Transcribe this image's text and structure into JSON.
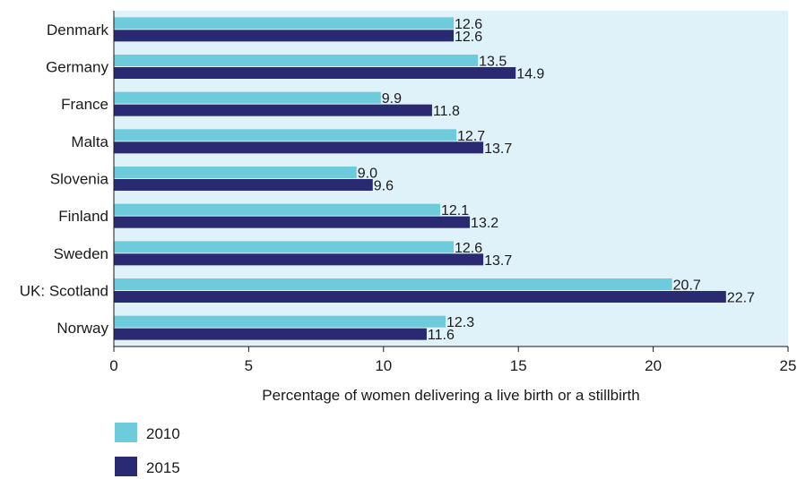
{
  "chart_data": {
    "type": "bar",
    "orientation": "horizontal",
    "categories": [
      "Denmark",
      "Germany",
      "France",
      "Malta",
      "Slovenia",
      "Finland",
      "Sweden",
      "UK: Scotland",
      "Norway"
    ],
    "series": [
      {
        "name": "2010",
        "color": "#6dcbdc",
        "values": [
          12.6,
          13.5,
          9.9,
          12.7,
          9.0,
          12.1,
          12.6,
          20.7,
          12.3
        ],
        "labels": [
          "12.6",
          "13.5",
          "9.9",
          "12.7",
          "9.0",
          "12.1",
          "12.6",
          "20.7",
          "12.3"
        ]
      },
      {
        "name": "2015",
        "color": "#2a2a72",
        "values": [
          12.6,
          14.9,
          11.8,
          13.7,
          9.6,
          13.2,
          13.7,
          22.7,
          11.6
        ],
        "labels": [
          "12.6",
          "14.9",
          "11.8",
          "13.7",
          "9.6",
          "13.2",
          "13.7",
          "22.7",
          "11.6"
        ]
      }
    ],
    "xlabel": "Percentage of women delivering a live birth or a stillbirth",
    "xlim": [
      0,
      25
    ],
    "xticks": [
      "0",
      "5",
      "10",
      "15",
      "20",
      "25"
    ],
    "grid": false,
    "legend_position": "bottom-left",
    "plot_background": "#dff1f9"
  }
}
